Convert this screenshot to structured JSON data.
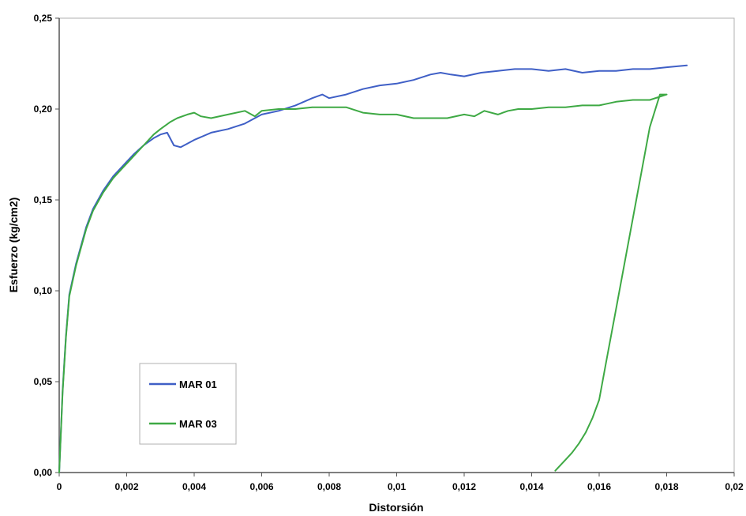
{
  "chart_data": {
    "type": "line",
    "xlabel": "Distorsión",
    "ylabel": "Esfuerzo (kg/cm2)",
    "xlim": [
      0,
      0.02
    ],
    "ylim": [
      0,
      0.25
    ],
    "x_ticks": [
      "0",
      "0,002",
      "0,004",
      "0,006",
      "0,008",
      "0,01",
      "0,012",
      "0,014",
      "0,016",
      "0,018",
      "0,02"
    ],
    "y_ticks": [
      "0,00",
      "0,05",
      "0,10",
      "0,15",
      "0,20",
      "0,25"
    ],
    "grid": false,
    "legend_position": "bottom-left",
    "series": [
      {
        "name": "MAR 01",
        "color": "#3f5fc6",
        "x": [
          0,
          0.0001,
          0.0002,
          0.0003,
          0.0005,
          0.0008,
          0.001,
          0.0013,
          0.0016,
          0.0019,
          0.0022,
          0.0025,
          0.0028,
          0.003,
          0.0032,
          0.0034,
          0.0036,
          0.0038,
          0.004,
          0.0045,
          0.005,
          0.0055,
          0.006,
          0.0065,
          0.007,
          0.0075,
          0.0078,
          0.008,
          0.0085,
          0.009,
          0.0095,
          0.01,
          0.0105,
          0.011,
          0.0113,
          0.0116,
          0.012,
          0.0125,
          0.013,
          0.0135,
          0.014,
          0.0145,
          0.015,
          0.0155,
          0.016,
          0.0165,
          0.017,
          0.0175,
          0.018,
          0.0186
        ],
        "y": [
          0,
          0.045,
          0.075,
          0.098,
          0.115,
          0.135,
          0.145,
          0.155,
          0.163,
          0.169,
          0.175,
          0.18,
          0.184,
          0.186,
          0.187,
          0.18,
          0.179,
          0.181,
          0.183,
          0.187,
          0.189,
          0.192,
          0.197,
          0.199,
          0.202,
          0.206,
          0.208,
          0.206,
          0.208,
          0.211,
          0.213,
          0.214,
          0.216,
          0.219,
          0.22,
          0.219,
          0.218,
          0.22,
          0.221,
          0.222,
          0.222,
          0.221,
          0.222,
          0.22,
          0.221,
          0.221,
          0.222,
          0.222,
          0.223,
          0.224
        ]
      },
      {
        "name": "MAR 03",
        "color": "#3ea944",
        "x": [
          0,
          0.0001,
          0.0002,
          0.0003,
          0.0005,
          0.0008,
          0.001,
          0.0013,
          0.0016,
          0.0019,
          0.0021,
          0.0023,
          0.0025,
          0.0028,
          0.003,
          0.0033,
          0.0035,
          0.0038,
          0.004,
          0.0042,
          0.0045,
          0.005,
          0.0055,
          0.0058,
          0.006,
          0.0065,
          0.007,
          0.0075,
          0.008,
          0.0085,
          0.009,
          0.0095,
          0.01,
          0.0105,
          0.011,
          0.0115,
          0.012,
          0.0123,
          0.0126,
          0.013,
          0.0133,
          0.0136,
          0.014,
          0.0145,
          0.015,
          0.0155,
          0.016,
          0.0165,
          0.017,
          0.0175,
          0.018,
          0.0178,
          0.0175,
          0.0172,
          0.0168,
          0.0165,
          0.0162,
          0.016,
          0.0158,
          0.0156,
          0.0154,
          0.0152,
          0.015,
          0.0148,
          0.0147
        ],
        "y": [
          0,
          0.044,
          0.074,
          0.097,
          0.114,
          0.134,
          0.144,
          0.154,
          0.162,
          0.168,
          0.172,
          0.176,
          0.18,
          0.186,
          0.189,
          0.193,
          0.195,
          0.197,
          0.198,
          0.196,
          0.195,
          0.197,
          0.199,
          0.196,
          0.199,
          0.2,
          0.2,
          0.201,
          0.201,
          0.201,
          0.198,
          0.197,
          0.197,
          0.195,
          0.195,
          0.195,
          0.197,
          0.196,
          0.199,
          0.197,
          0.199,
          0.2,
          0.2,
          0.201,
          0.201,
          0.202,
          0.202,
          0.204,
          0.205,
          0.205,
          0.208,
          0.208,
          0.19,
          0.16,
          0.12,
          0.09,
          0.06,
          0.04,
          0.03,
          0.022,
          0.016,
          0.011,
          0.007,
          0.003,
          0.001
        ]
      }
    ]
  }
}
